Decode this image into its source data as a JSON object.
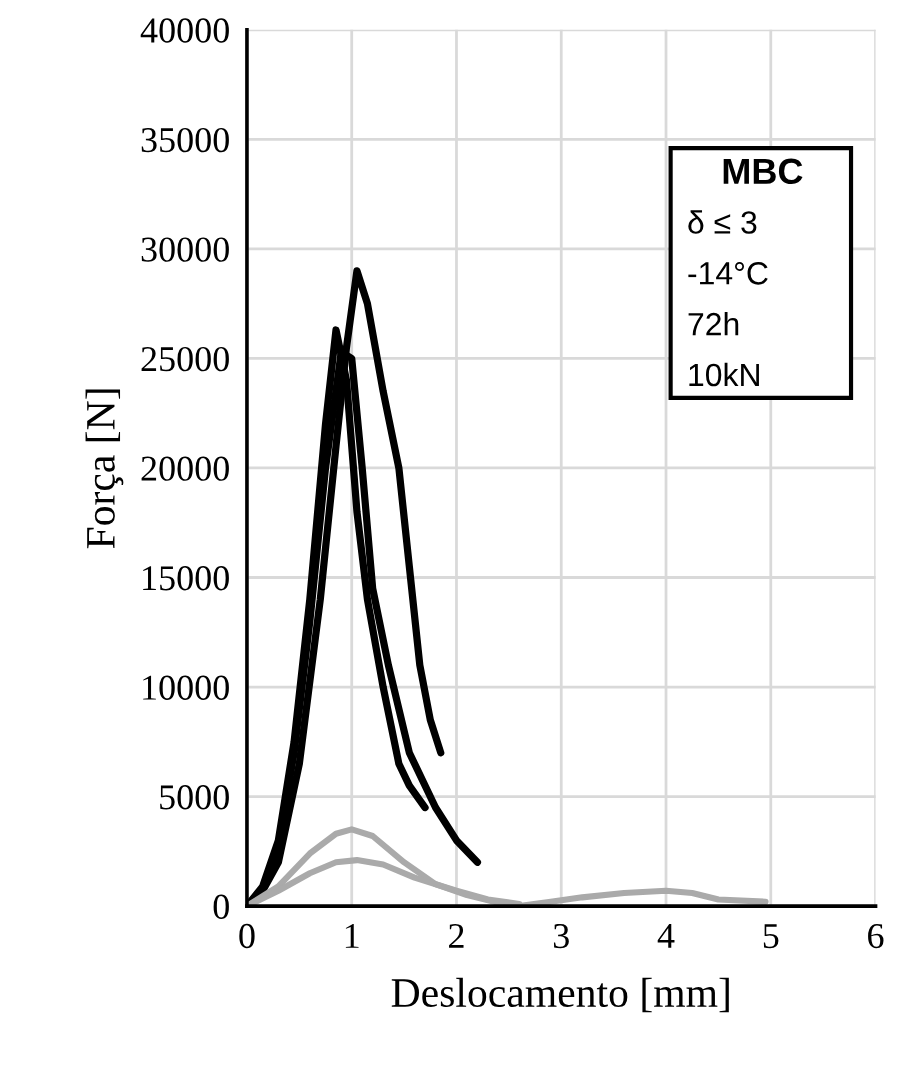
{
  "chart_data": {
    "type": "line",
    "xlabel": "Deslocamento [mm]",
    "ylabel": "Força [N]",
    "xlim": [
      0,
      6
    ],
    "xticks": [
      0,
      1,
      2,
      3,
      4,
      5,
      6
    ],
    "ylim": [
      0,
      40000
    ],
    "yticks": [
      0,
      5000,
      10000,
      15000,
      20000,
      25000,
      30000,
      35000,
      40000
    ],
    "grid": true,
    "legend": false,
    "marker": "none",
    "line_style": "solid",
    "annotations": [
      "MBC",
      "δ ≤ 3",
      "-14°C",
      "72h",
      "10kN"
    ],
    "series": [
      {
        "color": "#000000",
        "x": [
          0,
          0.15,
          0.3,
          0.5,
          0.7,
          0.85,
          0.95,
          1.05,
          1.15,
          1.3,
          1.45,
          1.55,
          1.65,
          1.75,
          1.85
        ],
        "values": [
          0,
          700,
          2000,
          6500,
          14000,
          21000,
          25500,
          29000,
          27500,
          23500,
          20000,
          15500,
          11000,
          8500,
          7000
        ]
      },
      {
        "color": "#000000",
        "x": [
          0,
          0.15,
          0.3,
          0.45,
          0.6,
          0.75,
          0.85,
          0.95,
          1.05,
          1.15,
          1.3,
          1.45,
          1.55,
          1.7
        ],
        "values": [
          0,
          900,
          3000,
          7500,
          14000,
          22000,
          26300,
          24000,
          18000,
          14000,
          10000,
          6500,
          5500,
          4500
        ]
      },
      {
        "color": "#000000",
        "x": [
          0,
          0.15,
          0.3,
          0.45,
          0.6,
          0.75,
          0.9,
          1.0,
          1.1,
          1.2,
          1.35,
          1.55,
          1.8,
          2.0,
          2.2
        ],
        "values": [
          0,
          800,
          2800,
          7000,
          13000,
          20000,
          25300,
          25000,
          20000,
          14500,
          11000,
          7000,
          4500,
          3000,
          2000
        ]
      },
      {
        "color": "#aaaaaa",
        "x": [
          0,
          0.3,
          0.6,
          0.85,
          1.0,
          1.2,
          1.5,
          1.8,
          2.1,
          2.4,
          2.6,
          2.9,
          3.2,
          3.6,
          4.0,
          4.25,
          4.5,
          4.95
        ],
        "values": [
          0,
          900,
          2400,
          3300,
          3500,
          3200,
          2000,
          1000,
          500,
          150,
          0,
          200,
          400,
          600,
          700,
          600,
          300,
          200
        ]
      },
      {
        "color": "#aaaaaa",
        "x": [
          0,
          0.3,
          0.6,
          0.85,
          1.05,
          1.3,
          1.6,
          2.0,
          2.3,
          2.6
        ],
        "values": [
          0,
          700,
          1500,
          2000,
          2100,
          1900,
          1300,
          700,
          300,
          100
        ]
      }
    ]
  }
}
